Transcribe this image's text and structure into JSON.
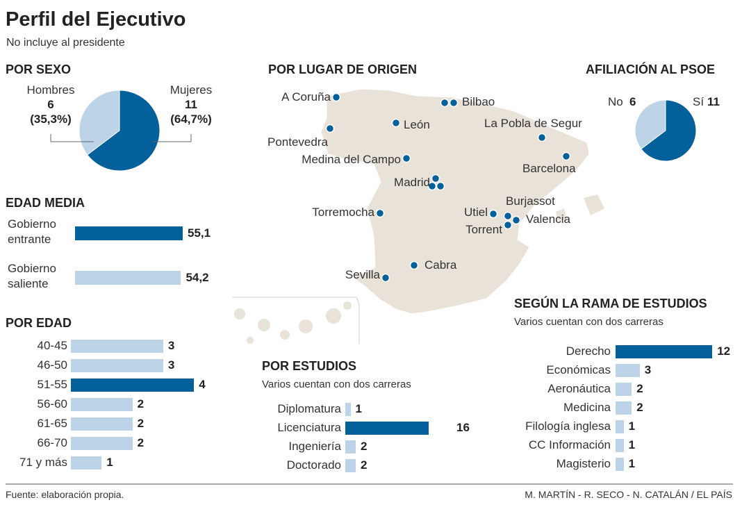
{
  "title": "Perfil del Ejecutivo",
  "subtitle": "No incluye al presidente",
  "colors": {
    "dark": "#04609a",
    "light": "#bcd3e8",
    "map": "#e8e2d8"
  },
  "chart_data": [
    {
      "type": "pie",
      "title": "POR SEXO",
      "slices": [
        {
          "name": "Hombres",
          "value": 6,
          "pct": "(35,3%)"
        },
        {
          "name": "Mujeres",
          "value": 11,
          "pct": "(64,7%)"
        }
      ]
    },
    {
      "type": "bar",
      "title": "EDAD MEDIA",
      "categories": [
        "Gobierno entrante",
        "Gobierno saliente"
      ],
      "values": [
        55.1,
        54.2
      ],
      "labels": [
        "55,1",
        "54,2"
      ]
    },
    {
      "type": "bar",
      "title": "POR EDAD",
      "categories": [
        "40-45",
        "46-50",
        "51-55",
        "56-60",
        "61-65",
        "66-70",
        "71 y más"
      ],
      "values": [
        3,
        3,
        4,
        2,
        2,
        2,
        1
      ],
      "highlight": [
        2
      ]
    },
    {
      "type": "map",
      "title": "POR LUGAR DE ORIGEN",
      "places": [
        {
          "name": "A Coruña",
          "count": 1
        },
        {
          "name": "Bilbao",
          "count": 2
        },
        {
          "name": "León",
          "count": 1
        },
        {
          "name": "La Pobla de Segur",
          "count": 1
        },
        {
          "name": "Pontevedra",
          "count": 1
        },
        {
          "name": "Medina del Campo",
          "count": 1
        },
        {
          "name": "Barcelona",
          "count": 1
        },
        {
          "name": "Madrid",
          "count": 3
        },
        {
          "name": "Torremocha",
          "count": 1
        },
        {
          "name": "Utiel",
          "count": 1
        },
        {
          "name": "Burjassot",
          "count": 1
        },
        {
          "name": "Valencia",
          "count": 1
        },
        {
          "name": "Torrent",
          "count": 1
        },
        {
          "name": "Cabra",
          "count": 1
        },
        {
          "name": "Sevilla",
          "count": 1
        }
      ]
    },
    {
      "type": "pie",
      "title": "AFILIACIÓN AL PSOE",
      "slices": [
        {
          "name": "No",
          "value": 6
        },
        {
          "name": "Sí",
          "value": 11
        }
      ]
    },
    {
      "type": "bar",
      "title": "POR ESTUDIOS",
      "subtitle": "Varios cuentan con dos carreras",
      "categories": [
        "Diplomatura",
        "Licenciatura",
        "Ingeniería",
        "Doctorado"
      ],
      "values": [
        1,
        16,
        2,
        2
      ],
      "highlight": [
        1
      ]
    },
    {
      "type": "bar",
      "title": "SEGÚN LA RAMA DE ESTUDIOS",
      "subtitle": "Varios cuentan con dos carreras",
      "categories": [
        "Derecho",
        "Económicas",
        "Aeronáutica",
        "Medicina",
        "Filología inglesa",
        "CC Información",
        "Magisterio"
      ],
      "values": [
        12,
        3,
        2,
        2,
        1,
        1,
        1
      ],
      "highlight": [
        0
      ]
    }
  ],
  "footer": {
    "source": "Fuente: elaboración propia.",
    "credits": "M. MARTÍN - R. SECO - N. CATALÁN /  EL PAÍS"
  }
}
